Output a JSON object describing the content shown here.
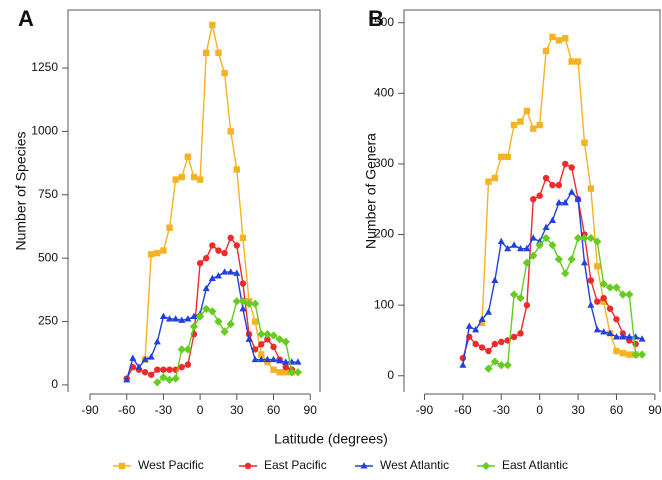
{
  "chart_data": [
    {
      "type": "line",
      "panel": "A",
      "ylabel": "Number of Species",
      "x": [
        -60,
        -55,
        -50,
        -45,
        -40,
        -35,
        -30,
        -25,
        -20,
        -15,
        -10,
        -5,
        0,
        5,
        10,
        15,
        20,
        25,
        30,
        35,
        40,
        45,
        50,
        55,
        60,
        65,
        70,
        75,
        80
      ],
      "xlim": [
        -108,
        98
      ],
      "ylim": [
        -28,
        1479
      ],
      "xticks": [
        -90,
        -60,
        -30,
        0,
        30,
        60,
        90
      ],
      "yticks": [
        0,
        250,
        500,
        750,
        1000,
        1250
      ],
      "series": [
        {
          "name": "West Pacific",
          "color": "#f5b324",
          "marker": "square",
          "values": [
            null,
            null,
            null,
            100,
            515,
            520,
            530,
            620,
            810,
            820,
            900,
            820,
            810,
            1310,
            1420,
            1310,
            1230,
            1000,
            850,
            580,
            330,
            250,
            120,
            90,
            60,
            50,
            50,
            50,
            null
          ]
        },
        {
          "name": "East Pacific",
          "color": "#ee2a2a",
          "marker": "circle",
          "values": [
            25,
            70,
            60,
            50,
            40,
            60,
            60,
            60,
            60,
            70,
            80,
            200,
            480,
            500,
            550,
            530,
            520,
            580,
            550,
            400,
            200,
            140,
            160,
            180,
            150,
            100,
            70,
            60,
            null
          ]
        },
        {
          "name": "West Atlantic",
          "color": "#2040e0",
          "marker": "triangle",
          "values": [
            20,
            105,
            70,
            100,
            110,
            170,
            270,
            260,
            260,
            255,
            260,
            270,
            280,
            380,
            420,
            430,
            445,
            445,
            440,
            300,
            180,
            100,
            100,
            100,
            100,
            95,
            90,
            90,
            90
          ]
        },
        {
          "name": "East Atlantic",
          "color": "#66cc22",
          "marker": "diamond",
          "values": [
            null,
            null,
            null,
            null,
            null,
            10,
            30,
            20,
            25,
            140,
            140,
            230,
            270,
            300,
            290,
            250,
            210,
            240,
            330,
            330,
            320,
            320,
            200,
            200,
            195,
            180,
            170,
            50,
            50
          ]
        }
      ]
    },
    {
      "type": "line",
      "panel": "B",
      "ylabel": "Number of Genera",
      "x": [
        -60,
        -55,
        -50,
        -45,
        -40,
        -35,
        -30,
        -25,
        -20,
        -15,
        -10,
        -5,
        0,
        5,
        10,
        15,
        20,
        25,
        30,
        35,
        40,
        45,
        50,
        55,
        60,
        65,
        70,
        75,
        80
      ],
      "xlim": [
        -106,
        94
      ],
      "ylim": [
        -23,
        518
      ],
      "xticks": [
        -90,
        -60,
        -30,
        0,
        30,
        60,
        90
      ],
      "yticks": [
        0,
        100,
        200,
        300,
        400,
        500
      ],
      "series": [
        {
          "color": "#f5b324",
          "marker": "square",
          "values": [
            null,
            null,
            null,
            75,
            275,
            280,
            310,
            310,
            355,
            360,
            375,
            350,
            355,
            460,
            480,
            475,
            478,
            445,
            445,
            330,
            265,
            155,
            105,
            60,
            35,
            32,
            30,
            30,
            null
          ]
        },
        {
          "color": "#ee2a2a",
          "marker": "circle",
          "values": [
            25,
            55,
            45,
            40,
            35,
            45,
            48,
            50,
            55,
            60,
            100,
            250,
            255,
            280,
            270,
            270,
            300,
            295,
            250,
            200,
            135,
            105,
            110,
            95,
            80,
            60,
            50,
            45,
            null
          ]
        },
        {
          "color": "#2040e0",
          "marker": "triangle",
          "values": [
            15,
            70,
            65,
            80,
            90,
            135,
            190,
            180,
            185,
            180,
            180,
            195,
            190,
            210,
            220,
            245,
            245,
            260,
            250,
            160,
            100,
            65,
            62,
            60,
            55,
            55,
            55,
            55,
            52
          ]
        },
        {
          "color": "#66cc22",
          "marker": "diamond",
          "values": [
            null,
            null,
            null,
            null,
            10,
            20,
            15,
            15,
            115,
            110,
            160,
            170,
            185,
            195,
            185,
            165,
            145,
            165,
            195,
            195,
            195,
            190,
            130,
            125,
            125,
            115,
            115,
            30,
            30
          ]
        }
      ]
    }
  ],
  "xlabel": "Latitude (degrees)"
}
